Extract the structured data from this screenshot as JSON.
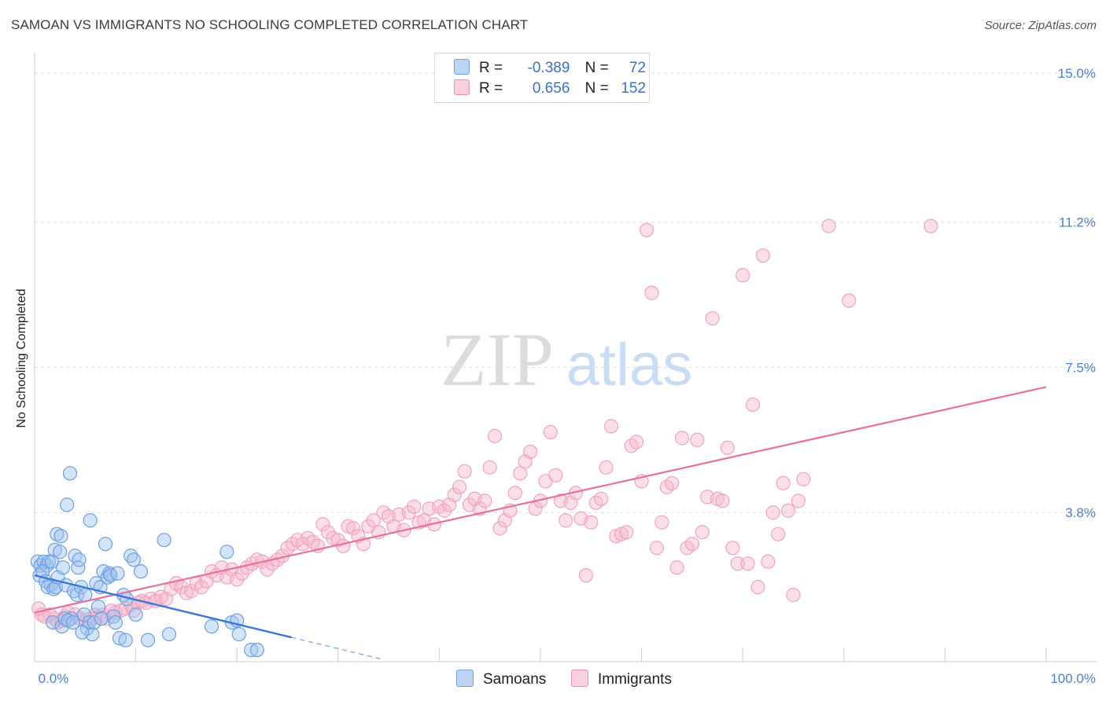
{
  "title": "SAMOAN VS IMMIGRANTS NO SCHOOLING COMPLETED CORRELATION CHART",
  "source": "Source: ZipAtlas.com",
  "watermark": {
    "zip": "ZIP",
    "atlas": "atlas"
  },
  "legend": {
    "r_label": "R =",
    "n_label": "N =",
    "series": [
      {
        "r": "-0.389",
        "n": "72",
        "color": "#9fc3f0",
        "border": "#6f9fe0"
      },
      {
        "r": "0.656",
        "n": "152",
        "color": "#f7b9cc",
        "border": "#ee8fae"
      }
    ]
  },
  "bottom_legend": [
    "Samoans",
    "Immigrants"
  ],
  "chart_data": {
    "type": "scatter",
    "title": "SAMOAN VS IMMIGRANTS NO SCHOOLING COMPLETED CORRELATION CHART",
    "xlabel": "",
    "ylabel": "No Schooling Completed",
    "xlim": [
      0,
      100
    ],
    "ylim": [
      0,
      15.3
    ],
    "x_tick_labels": [
      "0.0%",
      "100.0%"
    ],
    "y_ticks": [
      3.8,
      7.5,
      11.2,
      15.0
    ],
    "y_tick_labels": [
      "3.8%",
      "7.5%",
      "11.2%",
      "15.0%"
    ],
    "series": [
      {
        "name": "Samoans",
        "color": "#6fa3e6",
        "trend": {
          "x0": 0,
          "y0": 2.2,
          "x1": 25.4,
          "y1": 0.62,
          "dash_to_x": 34.5
        },
        "points": [
          [
            0.3,
            2.55
          ],
          [
            0.6,
            2.45
          ],
          [
            0.5,
            2.2
          ],
          [
            0.9,
            2.55
          ],
          [
            1.2,
            2.45
          ],
          [
            1.4,
            2.55
          ],
          [
            1.7,
            2.55
          ],
          [
            0.8,
            2.3
          ],
          [
            1.1,
            2.05
          ],
          [
            1.6,
            1.95
          ],
          [
            1.3,
            1.9
          ],
          [
            1.9,
            1.85
          ],
          [
            2.1,
            1.9
          ],
          [
            2.3,
            2.15
          ],
          [
            2.0,
            2.85
          ],
          [
            2.2,
            3.25
          ],
          [
            2.5,
            2.8
          ],
          [
            2.6,
            3.2
          ],
          [
            2.8,
            2.4
          ],
          [
            3.2,
            4.0
          ],
          [
            3.1,
            1.95
          ],
          [
            3.5,
            4.8
          ],
          [
            3.6,
            1.1
          ],
          [
            3.9,
            1.8
          ],
          [
            4.0,
            2.7
          ],
          [
            4.3,
            2.4
          ],
          [
            4.4,
            2.6
          ],
          [
            4.2,
            1.7
          ],
          [
            4.6,
            1.9
          ],
          [
            5.0,
            1.7
          ],
          [
            4.9,
            1.2
          ],
          [
            5.2,
            0.85
          ],
          [
            5.4,
            1.0
          ],
          [
            5.5,
            3.6
          ],
          [
            5.7,
            0.7
          ],
          [
            5.9,
            1.0
          ],
          [
            6.1,
            2.0
          ],
          [
            6.3,
            1.4
          ],
          [
            6.5,
            1.9
          ],
          [
            6.6,
            1.1
          ],
          [
            6.8,
            2.3
          ],
          [
            7.0,
            3.0
          ],
          [
            7.2,
            2.15
          ],
          [
            7.4,
            2.25
          ],
          [
            7.5,
            2.2
          ],
          [
            7.8,
            1.15
          ],
          [
            8.0,
            1.0
          ],
          [
            8.2,
            2.25
          ],
          [
            8.4,
            0.6
          ],
          [
            8.8,
            1.7
          ],
          [
            9.0,
            0.55
          ],
          [
            9.1,
            1.6
          ],
          [
            9.5,
            2.7
          ],
          [
            9.8,
            2.6
          ],
          [
            10.0,
            1.2
          ],
          [
            10.5,
            2.3
          ],
          [
            11.2,
            0.55
          ],
          [
            12.8,
            3.1
          ],
          [
            13.3,
            0.7
          ],
          [
            1.8,
            1.0
          ],
          [
            2.7,
            0.9
          ],
          [
            3.0,
            1.1
          ],
          [
            3.3,
            1.05
          ],
          [
            3.8,
            1.0
          ],
          [
            4.7,
            0.75
          ],
          [
            17.5,
            0.9
          ],
          [
            19.0,
            2.8
          ],
          [
            19.5,
            1.0
          ],
          [
            20.0,
            1.05
          ],
          [
            20.2,
            0.7
          ],
          [
            21.4,
            0.3
          ],
          [
            22.0,
            0.3
          ]
        ]
      },
      {
        "name": "Immigrants",
        "color": "#f29bb8",
        "trend": {
          "x0": 0,
          "y0": 1.25,
          "x1": 100,
          "y1": 7.0
        },
        "points": [
          [
            0.4,
            1.35
          ],
          [
            0.7,
            1.2
          ],
          [
            1.0,
            1.15
          ],
          [
            1.5,
            1.2
          ],
          [
            2.0,
            1.1
          ],
          [
            2.3,
            1.0
          ],
          [
            2.7,
            1.05
          ],
          [
            3.0,
            1.15
          ],
          [
            3.3,
            1.25
          ],
          [
            3.6,
            1.1
          ],
          [
            4.0,
            1.2
          ],
          [
            4.5,
            1.1
          ],
          [
            5.0,
            1.05
          ],
          [
            5.5,
            1.1
          ],
          [
            6.0,
            1.2
          ],
          [
            6.3,
            1.15
          ],
          [
            6.8,
            1.2
          ],
          [
            7.2,
            1.1
          ],
          [
            7.6,
            1.3
          ],
          [
            8.0,
            1.25
          ],
          [
            8.5,
            1.3
          ],
          [
            9.0,
            1.35
          ],
          [
            9.5,
            1.45
          ],
          [
            9.8,
            1.3
          ],
          [
            10.2,
            1.5
          ],
          [
            10.6,
            1.55
          ],
          [
            11.0,
            1.5
          ],
          [
            11.5,
            1.6
          ],
          [
            12.0,
            1.55
          ],
          [
            12.5,
            1.65
          ],
          [
            13.0,
            1.6
          ],
          [
            13.5,
            1.85
          ],
          [
            14.0,
            2.0
          ],
          [
            14.5,
            1.9
          ],
          [
            15.0,
            1.75
          ],
          [
            15.5,
            1.8
          ],
          [
            16.0,
            2.0
          ],
          [
            16.5,
            1.9
          ],
          [
            17.0,
            2.05
          ],
          [
            17.5,
            2.3
          ],
          [
            18.0,
            2.2
          ],
          [
            18.5,
            2.4
          ],
          [
            19.0,
            2.15
          ],
          [
            19.5,
            2.35
          ],
          [
            20.0,
            2.1
          ],
          [
            20.5,
            2.25
          ],
          [
            21.0,
            2.4
          ],
          [
            21.5,
            2.5
          ],
          [
            22.0,
            2.6
          ],
          [
            22.5,
            2.55
          ],
          [
            23.0,
            2.35
          ],
          [
            23.5,
            2.5
          ],
          [
            24.0,
            2.6
          ],
          [
            24.5,
            2.7
          ],
          [
            25.0,
            2.9
          ],
          [
            25.5,
            3.0
          ],
          [
            26.0,
            3.1
          ],
          [
            26.5,
            3.0
          ],
          [
            27.0,
            3.15
          ],
          [
            27.5,
            3.05
          ],
          [
            28.0,
            2.95
          ],
          [
            28.5,
            3.5
          ],
          [
            29.0,
            3.3
          ],
          [
            29.5,
            3.15
          ],
          [
            30.0,
            3.1
          ],
          [
            30.5,
            2.95
          ],
          [
            31.0,
            3.45
          ],
          [
            31.5,
            3.4
          ],
          [
            32.0,
            3.2
          ],
          [
            32.5,
            3.0
          ],
          [
            33.0,
            3.45
          ],
          [
            33.5,
            3.6
          ],
          [
            34.0,
            3.3
          ],
          [
            34.5,
            3.8
          ],
          [
            35.0,
            3.7
          ],
          [
            35.5,
            3.45
          ],
          [
            36.0,
            3.75
          ],
          [
            36.5,
            3.35
          ],
          [
            37.0,
            3.8
          ],
          [
            37.5,
            3.95
          ],
          [
            38.0,
            3.55
          ],
          [
            38.5,
            3.6
          ],
          [
            39.0,
            3.9
          ],
          [
            39.5,
            3.5
          ],
          [
            40.0,
            3.95
          ],
          [
            40.5,
            3.85
          ],
          [
            41.0,
            4.0
          ],
          [
            41.5,
            4.25
          ],
          [
            42.0,
            4.45
          ],
          [
            42.5,
            4.85
          ],
          [
            43.0,
            4.0
          ],
          [
            43.5,
            4.15
          ],
          [
            44.0,
            3.9
          ],
          [
            44.5,
            4.1
          ],
          [
            45.0,
            4.95
          ],
          [
            45.5,
            5.75
          ],
          [
            46.0,
            3.4
          ],
          [
            46.5,
            3.6
          ],
          [
            47.0,
            3.85
          ],
          [
            47.5,
            4.3
          ],
          [
            48.0,
            4.8
          ],
          [
            48.5,
            5.1
          ],
          [
            49.0,
            5.35
          ],
          [
            49.5,
            3.9
          ],
          [
            50.0,
            4.1
          ],
          [
            50.5,
            4.6
          ],
          [
            51.0,
            5.85
          ],
          [
            51.5,
            4.75
          ],
          [
            52.0,
            4.1
          ],
          [
            52.5,
            3.6
          ],
          [
            53.0,
            4.05
          ],
          [
            53.5,
            4.3
          ],
          [
            54.0,
            3.65
          ],
          [
            54.5,
            2.2
          ],
          [
            55.0,
            3.55
          ],
          [
            55.5,
            4.05
          ],
          [
            56.0,
            4.15
          ],
          [
            56.5,
            4.95
          ],
          [
            57.0,
            6.0
          ],
          [
            57.5,
            3.2
          ],
          [
            58.0,
            3.25
          ],
          [
            58.5,
            3.3
          ],
          [
            59.0,
            5.5
          ],
          [
            59.5,
            5.6
          ],
          [
            60.0,
            4.6
          ],
          [
            60.5,
            11.0
          ],
          [
            61.0,
            9.4
          ],
          [
            61.5,
            2.9
          ],
          [
            62.0,
            3.55
          ],
          [
            62.5,
            4.45
          ],
          [
            63.0,
            4.55
          ],
          [
            63.5,
            2.4
          ],
          [
            64.0,
            5.7
          ],
          [
            64.5,
            2.9
          ],
          [
            65.0,
            3.0
          ],
          [
            65.5,
            5.65
          ],
          [
            66.0,
            3.3
          ],
          [
            66.5,
            4.2
          ],
          [
            67.0,
            8.75
          ],
          [
            67.5,
            4.15
          ],
          [
            68.0,
            4.1
          ],
          [
            68.5,
            5.45
          ],
          [
            69.0,
            2.9
          ],
          [
            69.5,
            2.5
          ],
          [
            70.0,
            9.85
          ],
          [
            70.5,
            2.5
          ],
          [
            71.0,
            6.55
          ],
          [
            71.5,
            1.9
          ],
          [
            72.0,
            10.35
          ],
          [
            72.5,
            2.55
          ],
          [
            73.0,
            3.8
          ],
          [
            73.5,
            3.25
          ],
          [
            74.0,
            4.55
          ],
          [
            74.5,
            3.85
          ],
          [
            75.0,
            1.7
          ],
          [
            75.5,
            4.1
          ],
          [
            76.0,
            4.65
          ],
          [
            78.5,
            11.1
          ],
          [
            80.5,
            9.2
          ],
          [
            88.6,
            11.1
          ]
        ]
      }
    ]
  }
}
